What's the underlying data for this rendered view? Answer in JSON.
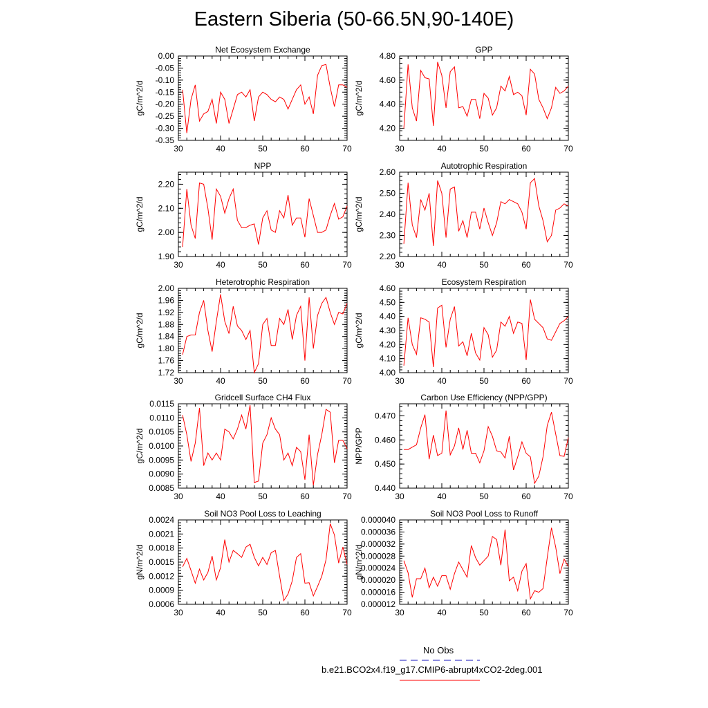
{
  "title": "Eastern Siberia (50-66.5N,90-140E)",
  "colors": {
    "model_line": "#ff0000",
    "obs_line": "#4444cc",
    "axes": "#000000"
  },
  "legend": {
    "obs_label": "No Obs",
    "model_label": "b.e21.BCO2x4.f19_g17.CMIP6-abrupt4xCO2-2deg.001"
  },
  "chart_data": [
    {
      "type": "line",
      "title": "Net Ecosystem Exchange",
      "ylabel": "gC/m^2/d",
      "xlim": [
        30,
        70
      ],
      "ylim": [
        -0.35,
        0.0
      ],
      "x_ticks": [
        "30",
        "40",
        "50",
        "60",
        "70"
      ],
      "y_ticks": [
        "0.00",
        "-0.05",
        "-0.10",
        "-0.15",
        "-0.20",
        "-0.25",
        "-0.30",
        "-0.35"
      ],
      "series": [
        {
          "x_start": 31,
          "values": [
            -0.14,
            -0.32,
            -0.18,
            -0.12,
            -0.27,
            -0.24,
            -0.23,
            -0.18,
            -0.28,
            -0.15,
            -0.18,
            -0.28,
            -0.22,
            -0.16,
            -0.15,
            -0.17,
            -0.14,
            -0.27,
            -0.17,
            -0.15,
            -0.16,
            -0.18,
            -0.19,
            -0.17,
            -0.18,
            -0.22,
            -0.18,
            -0.14,
            -0.12,
            -0.2,
            -0.17,
            -0.24,
            -0.08,
            -0.04,
            -0.035,
            -0.13,
            -0.21,
            -0.12,
            -0.12,
            -0.13
          ]
        }
      ]
    },
    {
      "type": "line",
      "title": "GPP",
      "ylabel": "gC/m^2/d",
      "xlim": [
        30,
        70
      ],
      "ylim": [
        4.1,
        4.8
      ],
      "x_ticks": [
        "30",
        "40",
        "50",
        "60",
        "70"
      ],
      "y_ticks": [
        "4.20",
        "4.40",
        "4.60",
        "4.80"
      ],
      "series": [
        {
          "x_start": 31,
          "values": [
            4.2,
            4.73,
            4.37,
            4.26,
            4.68,
            4.62,
            4.61,
            4.22,
            4.75,
            4.64,
            4.37,
            4.67,
            4.71,
            4.37,
            4.38,
            4.3,
            4.44,
            4.44,
            4.28,
            4.49,
            4.45,
            4.31,
            4.37,
            4.55,
            4.51,
            4.63,
            4.48,
            4.5,
            4.47,
            4.31,
            4.69,
            4.65,
            4.44,
            4.37,
            4.28,
            4.37,
            4.54,
            4.49,
            4.51,
            4.55
          ]
        }
      ]
    },
    {
      "type": "line",
      "title": "NPP",
      "ylabel": "gC/m^2/d",
      "xlim": [
        30,
        70
      ],
      "ylim": [
        1.9,
        2.25
      ],
      "x_ticks": [
        "30",
        "40",
        "50",
        "60",
        "70"
      ],
      "y_ticks": [
        "1.90",
        "2.00",
        "2.10",
        "2.20"
      ],
      "series": [
        {
          "x_start": 31,
          "values": [
            1.94,
            2.18,
            2.03,
            1.975,
            2.205,
            2.2,
            2.1,
            1.97,
            2.18,
            2.15,
            2.08,
            2.14,
            2.18,
            2.05,
            2.02,
            2.02,
            2.03,
            2.035,
            1.95,
            2.06,
            2.09,
            2.01,
            2.0,
            2.09,
            2.06,
            2.155,
            2.03,
            2.06,
            2.06,
            1.98,
            2.14,
            2.07,
            2.0,
            2.0,
            2.01,
            2.07,
            2.12,
            2.055,
            2.065,
            2.11
          ]
        }
      ]
    },
    {
      "type": "line",
      "title": "Autotrophic Respiration",
      "ylabel": "gC/m^2/d",
      "xlim": [
        30,
        70
      ],
      "ylim": [
        2.2,
        2.6
      ],
      "x_ticks": [
        "30",
        "40",
        "50",
        "60",
        "70"
      ],
      "y_ticks": [
        "2.20",
        "2.30",
        "2.40",
        "2.50",
        "2.60"
      ],
      "series": [
        {
          "x_start": 31,
          "values": [
            2.26,
            2.55,
            2.35,
            2.29,
            2.47,
            2.42,
            2.5,
            2.25,
            2.56,
            2.5,
            2.29,
            2.52,
            2.53,
            2.32,
            2.37,
            2.29,
            2.41,
            2.41,
            2.33,
            2.43,
            2.36,
            2.3,
            2.36,
            2.46,
            2.45,
            2.47,
            2.46,
            2.45,
            2.41,
            2.33,
            2.55,
            2.57,
            2.44,
            2.37,
            2.27,
            2.3,
            2.42,
            2.43,
            2.45,
            2.44
          ]
        }
      ]
    },
    {
      "type": "line",
      "title": "Heterotrophic Respiration",
      "ylabel": "gC/m^2/d",
      "xlim": [
        30,
        70
      ],
      "ylim": [
        1.72,
        2.0
      ],
      "x_ticks": [
        "30",
        "40",
        "50",
        "60",
        "70"
      ],
      "y_ticks": [
        "1.72",
        "1.76",
        "1.80",
        "1.84",
        "1.88",
        "1.92",
        "1.96",
        "2.00"
      ],
      "series": [
        {
          "x_start": 31,
          "values": [
            1.78,
            1.84,
            1.845,
            1.845,
            1.92,
            1.96,
            1.86,
            1.79,
            1.89,
            1.98,
            1.89,
            1.85,
            1.94,
            1.875,
            1.86,
            1.83,
            1.86,
            1.72,
            1.75,
            1.88,
            1.9,
            1.81,
            1.81,
            1.9,
            1.88,
            1.93,
            1.83,
            1.91,
            1.94,
            1.76,
            1.97,
            1.8,
            1.91,
            1.95,
            1.97,
            1.92,
            1.88,
            1.92,
            1.915,
            1.95
          ]
        }
      ]
    },
    {
      "type": "line",
      "title": "Ecosystem Respiration",
      "ylabel": "gC/m^2/d",
      "xlim": [
        30,
        70
      ],
      "ylim": [
        4.0,
        4.6
      ],
      "x_ticks": [
        "30",
        "40",
        "50",
        "60",
        "70"
      ],
      "y_ticks": [
        "4.00",
        "4.10",
        "4.20",
        "4.30",
        "4.40",
        "4.50",
        "4.60"
      ],
      "series": [
        {
          "x_start": 31,
          "values": [
            4.05,
            4.39,
            4.2,
            4.13,
            4.39,
            4.38,
            4.36,
            4.04,
            4.46,
            4.48,
            4.18,
            4.38,
            4.47,
            4.19,
            4.22,
            4.12,
            4.28,
            4.14,
            4.09,
            4.32,
            4.27,
            4.11,
            4.16,
            4.36,
            4.33,
            4.4,
            4.28,
            4.36,
            4.35,
            4.09,
            4.52,
            4.38,
            4.35,
            4.32,
            4.24,
            4.23,
            4.29,
            4.35,
            4.37,
            4.4
          ]
        }
      ]
    },
    {
      "type": "line",
      "title": "Gridcell Surface CH4 Flux",
      "ylabel": "gC/m^2/d",
      "xlim": [
        30,
        70
      ],
      "ylim": [
        0.0085,
        0.0115
      ],
      "x_ticks": [
        "30",
        "40",
        "50",
        "60",
        "70"
      ],
      "y_ticks": [
        "0.0115",
        "0.0110",
        "0.0105",
        "0.0100",
        "0.0095",
        "0.0090",
        "0.0085"
      ],
      "series": [
        {
          "x_start": 31,
          "values": [
            0.0111,
            0.0104,
            0.00945,
            0.0101,
            0.01135,
            0.0093,
            0.00975,
            0.0095,
            0.00975,
            0.0095,
            0.0106,
            0.0105,
            0.01025,
            0.0106,
            0.0111,
            0.0106,
            0.01145,
            0.0087,
            0.00875,
            0.0101,
            0.0104,
            0.011,
            0.0106,
            0.0104,
            0.0095,
            0.00975,
            0.0093,
            0.00995,
            0.0098,
            0.0088,
            0.0104,
            0.0086,
            0.0097,
            0.0104,
            0.0113,
            0.0112,
            0.0094,
            0.0102,
            0.0102,
            0.0099
          ]
        }
      ]
    },
    {
      "type": "line",
      "title": "Carbon Use Efficiency (NPP/GPP)",
      "ylabel": "NPP/GPP",
      "xlim": [
        30,
        70
      ],
      "ylim": [
        0.44,
        0.475
      ],
      "x_ticks": [
        "30",
        "40",
        "50",
        "60",
        "70"
      ],
      "y_ticks": [
        "0.470",
        "0.460",
        "0.450",
        "0.440"
      ],
      "series": [
        {
          "x_start": 31,
          "values": [
            0.456,
            0.456,
            0.457,
            0.458,
            0.465,
            0.4705,
            0.452,
            0.462,
            0.4535,
            0.4545,
            0.4722,
            0.4538,
            0.4575,
            0.465,
            0.456,
            0.464,
            0.4545,
            0.4545,
            0.4505,
            0.4555,
            0.4655,
            0.4615,
            0.4555,
            0.455,
            0.4525,
            0.4615,
            0.4475,
            0.453,
            0.4592,
            0.4545,
            0.453,
            0.442,
            0.445,
            0.453,
            0.466,
            0.4715,
            0.4625,
            0.4535,
            0.4532,
            0.461
          ]
        }
      ]
    },
    {
      "type": "line",
      "title": "Soil NO3 Pool Loss to Leaching",
      "ylabel": "gN/m^2/d",
      "xlim": [
        30,
        70
      ],
      "ylim": [
        0.0006,
        0.0024
      ],
      "x_ticks": [
        "30",
        "40",
        "50",
        "60",
        "70"
      ],
      "y_ticks": [
        "0.0024",
        "0.0021",
        "0.0018",
        "0.0015",
        "0.0012",
        "0.0009",
        "0.0006"
      ],
      "series": [
        {
          "x_start": 31,
          "values": [
            0.0014,
            0.00158,
            0.00132,
            0.00105,
            0.00135,
            0.00112,
            0.00128,
            0.00163,
            0.00112,
            0.00138,
            0.00198,
            0.0015,
            0.00175,
            0.00168,
            0.0016,
            0.00182,
            0.00188,
            0.0016,
            0.00142,
            0.0016,
            0.00145,
            0.0017,
            0.00175,
            0.0012,
            0.00068,
            0.00082,
            0.0011,
            0.0016,
            0.00168,
            0.00105,
            0.00106,
            0.00078,
            0.00098,
            0.0012,
            0.00155,
            0.00232,
            0.00208,
            0.00148,
            0.00182,
            0.00145
          ]
        }
      ]
    },
    {
      "type": "line",
      "title": "Soil NO3 Pool Loss to Runoff",
      "ylabel": "gN/m^2/d",
      "xlim": [
        30,
        70
      ],
      "ylim": [
        1.2e-05,
        4e-05
      ],
      "x_ticks": [
        "30",
        "40",
        "50",
        "60",
        "70"
      ],
      "y_ticks": [
        "0.000040",
        "0.000036",
        "0.000032",
        "0.000028",
        "0.000024",
        "0.000020",
        "0.000016",
        "0.000012"
      ],
      "series": [
        {
          "x_start": 31,
          "values": [
            2.65e-05,
            2.25e-05,
            1.43e-05,
            2.05e-05,
            2.05e-05,
            2.4e-05,
            1.75e-05,
            2.1e-05,
            1.8e-05,
            2.15e-05,
            2.15e-05,
            1.7e-05,
            2.22e-05,
            2.6e-05,
            2.35e-05,
            2.1e-05,
            3.15e-05,
            2.75e-05,
            2.5e-05,
            2.65e-05,
            2.8e-05,
            3.45e-05,
            3.35e-05,
            2.5e-05,
            3.68e-05,
            1.98e-05,
            2.1e-05,
            1.65e-05,
            2.3e-05,
            2.55e-05,
            1.38e-05,
            1.65e-05,
            1.6e-05,
            1.72e-05,
            2.75e-05,
            3.74e-05,
            3.1e-05,
            2.22e-05,
            2.7e-05,
            2.45e-05
          ]
        }
      ]
    }
  ]
}
